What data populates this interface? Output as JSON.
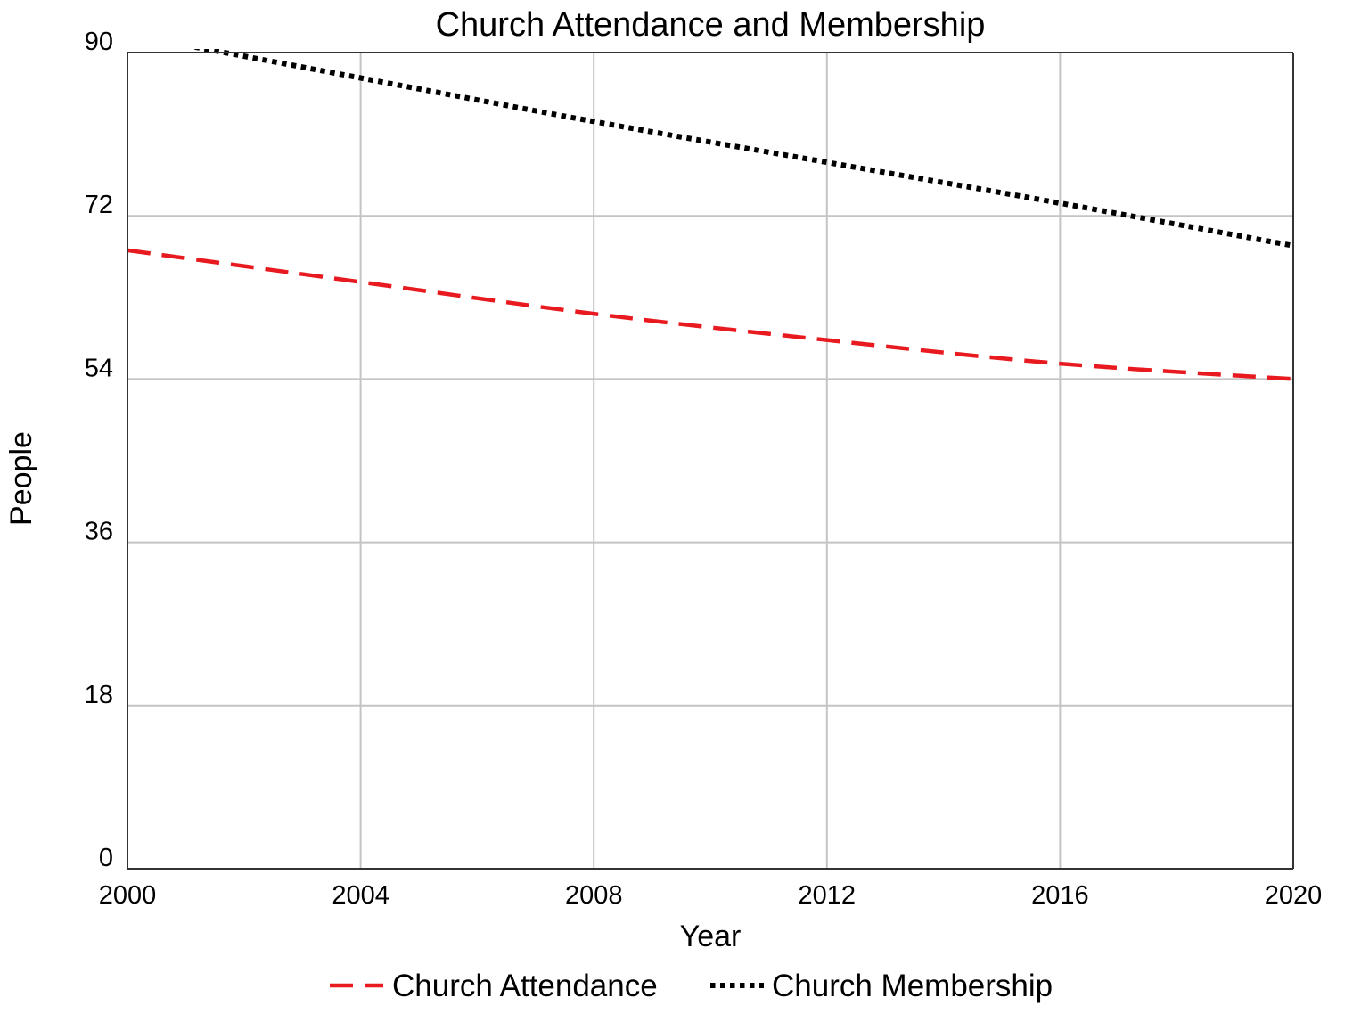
{
  "chart_data": {
    "type": "line",
    "title": "Church Attendance and Membership",
    "xlabel": "Year",
    "ylabel": "People",
    "xlim": [
      2000,
      2020
    ],
    "ylim": [
      0,
      90
    ],
    "x_ticks": [
      2000,
      2004,
      2008,
      2012,
      2016,
      2020
    ],
    "y_ticks": [
      0,
      18,
      36,
      54,
      72,
      90
    ],
    "x_tick_labels": [
      "2000",
      "2004",
      "2008",
      "2012",
      "2016",
      "2020"
    ],
    "y_tick_labels": [
      "0",
      "18",
      "36",
      "54",
      "72",
      "90"
    ],
    "grid": true,
    "legend_position": "bottom-center",
    "x": [
      2000,
      2004,
      2008,
      2012,
      2016,
      2020
    ],
    "series": [
      {
        "name": "Church Attendance",
        "color": "#e8191f",
        "line_style": "dashed",
        "values": [
          68.2,
          64.7,
          61.2,
          58.3,
          55.7,
          54.0
        ]
      },
      {
        "name": "Church Membership",
        "color": "#000000",
        "line_style": "dotted",
        "values": [
          92.0,
          87.2,
          82.4,
          77.9,
          73.4,
          68.7
        ]
      }
    ]
  }
}
